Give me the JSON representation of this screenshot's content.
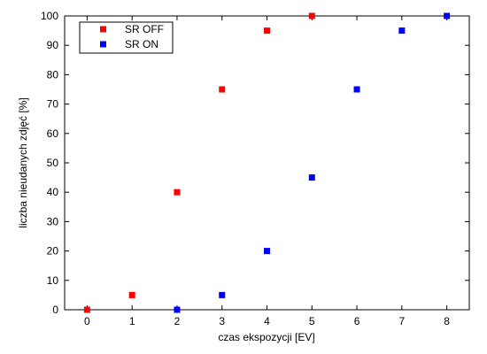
{
  "chart_data": {
    "type": "scatter",
    "title": "",
    "xlabel": "czas ekspozycji [EV]",
    "ylabel": "liczba nieudanych zdjęć [%]",
    "xlim": [
      -0.5,
      8.5
    ],
    "ylim": [
      0,
      100
    ],
    "xticks": [
      0,
      1,
      2,
      3,
      4,
      5,
      6,
      7,
      8
    ],
    "yticks": [
      0,
      10,
      20,
      30,
      40,
      50,
      60,
      70,
      80,
      90,
      100
    ],
    "grid": false,
    "legend": "top-left",
    "series": [
      {
        "name": "SR OFF",
        "color": "#ff0000",
        "x": [
          0,
          1,
          2,
          3,
          4,
          5
        ],
        "y": [
          0,
          5,
          40,
          75,
          95,
          100
        ]
      },
      {
        "name": "SR ON",
        "color": "#0000ff",
        "x": [
          2,
          3,
          4,
          5,
          6,
          7,
          8
        ],
        "y": [
          0,
          5,
          20,
          45,
          75,
          95,
          100
        ]
      }
    ]
  }
}
